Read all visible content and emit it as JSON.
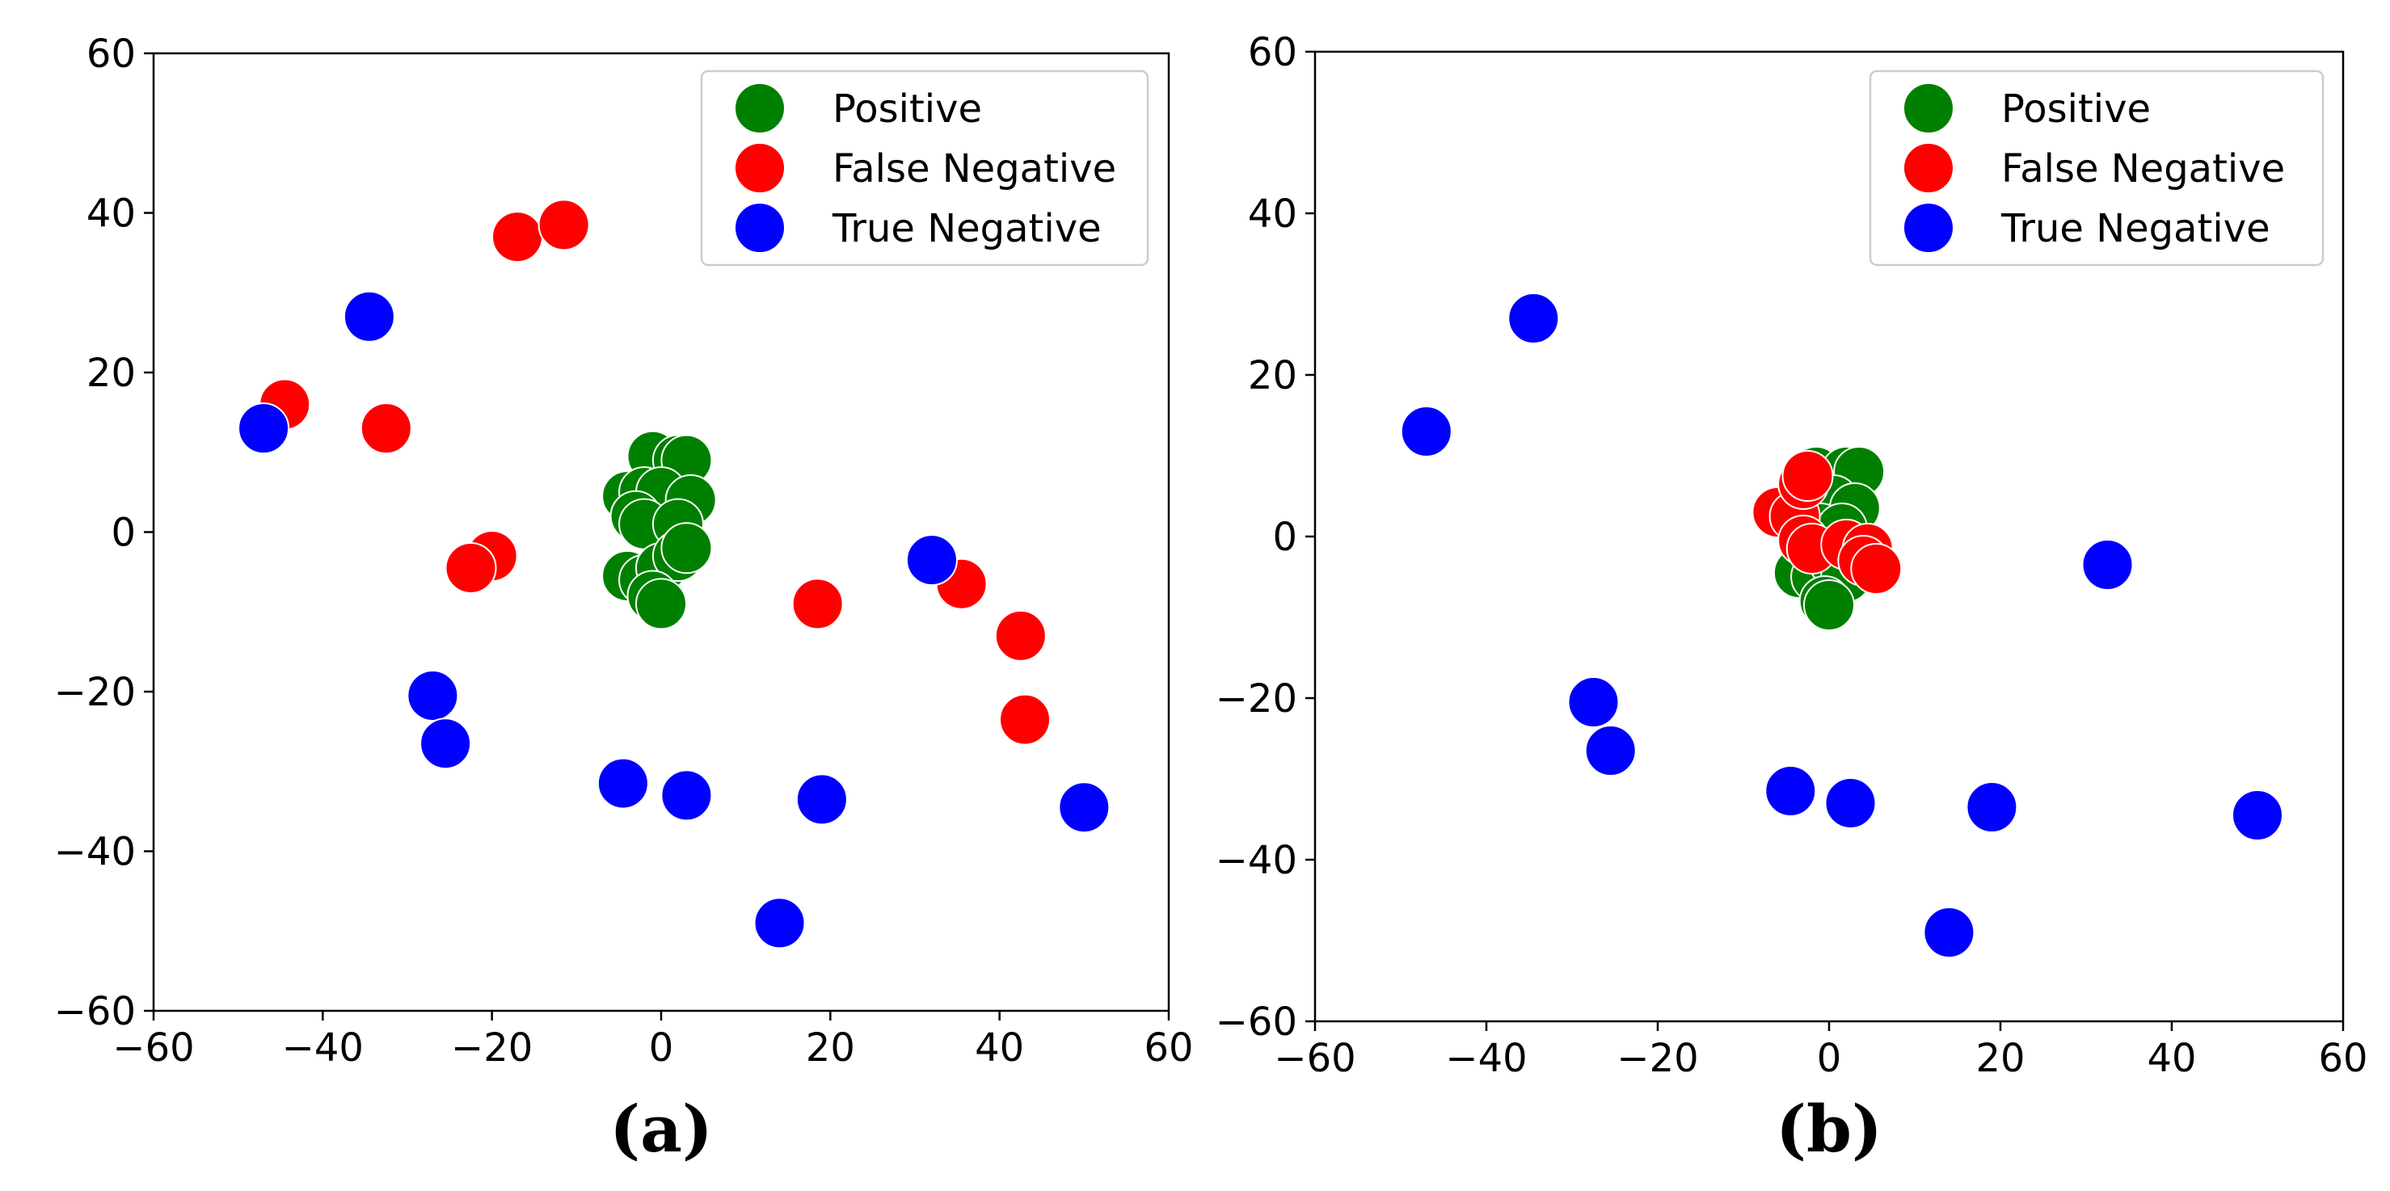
{
  "colors": {
    "Positive": "#008000",
    "False Negative": "#ff0000",
    "True Negative": "#0000ff"
  },
  "chart_data": [
    {
      "type": "scatter",
      "panel_label": "(a)",
      "xlim": [
        -60,
        60
      ],
      "ylim": [
        -60,
        60
      ],
      "xticks": [
        -60,
        -40,
        -20,
        0,
        20,
        40,
        60
      ],
      "yticks": [
        -60,
        -40,
        -20,
        0,
        20,
        40,
        60
      ],
      "tick_labels_x": [
        "−60",
        "−40",
        "−20",
        "0",
        "20",
        "40",
        "60"
      ],
      "tick_labels_y": [
        "−60",
        "−40",
        "−20",
        "0",
        "20",
        "40",
        "60"
      ],
      "legend": {
        "location": "upper right",
        "entries": [
          "Positive",
          "False Negative",
          "True Negative"
        ]
      },
      "series": [
        {
          "name": "Positive",
          "points": [
            [
              -1,
              9.5
            ],
            [
              2,
              9
            ],
            [
              3,
              9
            ],
            [
              -4,
              4.5
            ],
            [
              -2,
              5
            ],
            [
              0,
              5
            ],
            [
              3.5,
              4
            ],
            [
              -3,
              2
            ],
            [
              -2,
              1
            ],
            [
              2,
              1
            ],
            [
              -4,
              -5.5
            ],
            [
              -2,
              -6
            ],
            [
              0,
              -4.5
            ],
            [
              2,
              -3
            ],
            [
              3,
              -2
            ],
            [
              -1,
              -8
            ],
            [
              0,
              -9
            ]
          ]
        },
        {
          "name": "False Negative",
          "points": [
            [
              -17,
              37
            ],
            [
              -11.5,
              38.5
            ],
            [
              -44.5,
              16
            ],
            [
              -32.5,
              13
            ],
            [
              -20,
              -3
            ],
            [
              -22.5,
              -4.5
            ],
            [
              18.5,
              -9
            ],
            [
              35.5,
              -6.5
            ],
            [
              42.5,
              -13
            ],
            [
              43,
              -23.5
            ]
          ]
        },
        {
          "name": "True Negative",
          "points": [
            [
              -34.5,
              27
            ],
            [
              -47,
              13
            ],
            [
              -27,
              -20.5
            ],
            [
              -25.5,
              -26.5
            ],
            [
              -4.5,
              -31.5
            ],
            [
              3,
              -33
            ],
            [
              19,
              -33.5
            ],
            [
              14,
              -49
            ],
            [
              32,
              -3.5
            ],
            [
              50,
              -34.5
            ]
          ]
        }
      ]
    },
    {
      "type": "scatter",
      "panel_label": "(b)",
      "xlim": [
        -60,
        60
      ],
      "ylim": [
        -60,
        60
      ],
      "xticks": [
        -60,
        -40,
        -20,
        0,
        20,
        40,
        60
      ],
      "yticks": [
        -60,
        -40,
        -20,
        0,
        20,
        40,
        60
      ],
      "tick_labels_x": [
        "−60",
        "−40",
        "−20",
        "0",
        "20",
        "40",
        "60"
      ],
      "tick_labels_y": [
        "−60",
        "−40",
        "−20",
        "0",
        "20",
        "40",
        "60"
      ],
      "legend": {
        "location": "upper right",
        "entries": [
          "Positive",
          "False Negative",
          "True Negative"
        ]
      },
      "series": [
        {
          "name": "Positive",
          "points": [
            [
              -1.5,
              8
            ],
            [
              2,
              8
            ],
            [
              3.5,
              8
            ],
            [
              -2,
              4
            ],
            [
              0.5,
              4.5
            ],
            [
              3,
              3.5
            ],
            [
              -1,
              1
            ],
            [
              1.5,
              1
            ],
            [
              -3.5,
              -4.5
            ],
            [
              -1.5,
              -5
            ],
            [
              0.5,
              -3
            ],
            [
              2,
              -5
            ],
            [
              -0.5,
              -8
            ],
            [
              0,
              -8.5
            ]
          ]
        },
        {
          "name": "False Negative",
          "points": [
            [
              -6,
              3
            ],
            [
              -4,
              2.5
            ],
            [
              -3,
              6.5
            ],
            [
              -2.5,
              7.5
            ],
            [
              -3,
              -0.5
            ],
            [
              -2,
              -1.5
            ],
            [
              2,
              -1
            ],
            [
              4.5,
              -1.5
            ],
            [
              4,
              -3
            ],
            [
              5.5,
              -4
            ]
          ]
        },
        {
          "name": "True Negative",
          "points": [
            [
              -34.5,
              27
            ],
            [
              -47,
              13
            ],
            [
              -27.5,
              -20.5
            ],
            [
              -25.5,
              -26.5
            ],
            [
              -4.5,
              -31.5
            ],
            [
              2.5,
              -33
            ],
            [
              19,
              -33.5
            ],
            [
              14,
              -49
            ],
            [
              32.5,
              -3.5
            ],
            [
              50,
              -34.5
            ]
          ]
        }
      ]
    }
  ]
}
